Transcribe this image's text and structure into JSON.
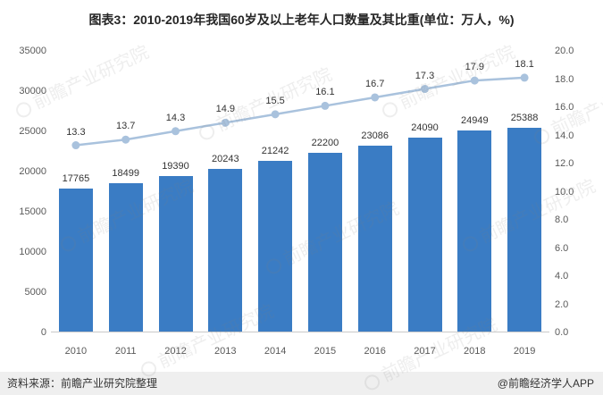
{
  "watermark": "前瞻产业研究院",
  "footer": {
    "source": "资料来源：前瞻产业研究院整理",
    "credit": "@前瞻经济学人APP"
  },
  "chart_data": {
    "type": "bar",
    "title": "图表3：2010-2019年我国60岁及以上老年人口数量及其比重(单位：万人，%)",
    "categories": [
      "2010",
      "2011",
      "2012",
      "2013",
      "2014",
      "2015",
      "2016",
      "2017",
      "2018",
      "2019"
    ],
    "series": [
      {
        "name": "老年人口数量(万人)",
        "type": "bar",
        "axis": "left",
        "color": "#3A7CC4",
        "values": [
          17765,
          18499,
          19390,
          20243,
          21242,
          22200,
          23086,
          24090,
          24949,
          25388
        ]
      },
      {
        "name": "比重(%)",
        "type": "line",
        "axis": "right",
        "color": "#A9C2DD",
        "values": [
          13.3,
          13.7,
          14.3,
          14.9,
          15.5,
          16.1,
          16.7,
          17.3,
          17.9,
          18.1
        ]
      }
    ],
    "xlabel": "",
    "ylabel": "",
    "grid": false,
    "legend": "none",
    "left_axis": {
      "min": 0,
      "max": 35000,
      "step": 5000,
      "ticks": [
        "35000",
        "30000",
        "25000",
        "20000",
        "15000",
        "10000",
        "5000",
        "0"
      ]
    },
    "right_axis": {
      "min": 0,
      "max": 20,
      "step": 2,
      "ticks": [
        "20.0",
        "18.0",
        "16.0",
        "14.0",
        "12.0",
        "10.0",
        "8.0",
        "6.0",
        "4.0",
        "2.0",
        "0.0"
      ]
    }
  }
}
